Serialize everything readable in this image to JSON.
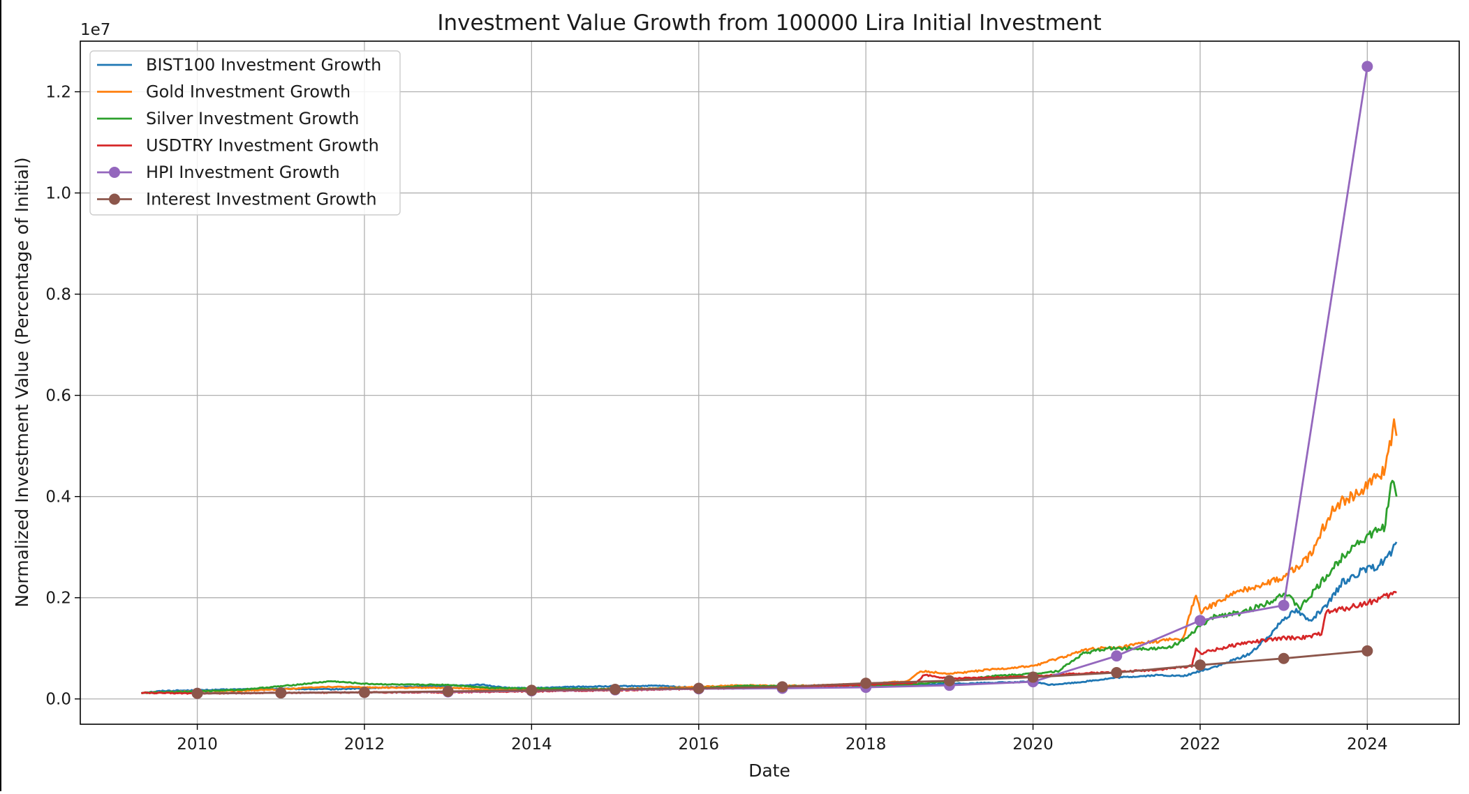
{
  "chart_data": {
    "type": "line",
    "title": "Investment Value Growth from 100000 Lira Initial Investment",
    "xlabel": "Date",
    "ylabel": "Normalized Investment Value (Percentage of Initial)",
    "y_scale_label": "1e7",
    "x_tick_labels": [
      "2010",
      "2012",
      "2014",
      "2016",
      "2018",
      "2020",
      "2022",
      "2024"
    ],
    "x_ticks": [
      2010,
      2012,
      2014,
      2016,
      2018,
      2020,
      2022,
      2024
    ],
    "y_tick_labels": [
      "0.0",
      "0.2",
      "0.4",
      "0.6",
      "0.8",
      "1.0",
      "1.2"
    ],
    "y_ticks": [
      0,
      0.2,
      0.4,
      0.6,
      0.8,
      1.0,
      1.2
    ],
    "xlim": [
      2008.6,
      2025.1
    ],
    "ylim": [
      -0.05,
      1.3
    ],
    "grid": true,
    "legend_position": "top-left",
    "series": [
      {
        "name": "BIST100 Investment Growth",
        "color": "#1f77b4",
        "marker": false,
        "x": [
          2009.33,
          2009.6,
          2010.0,
          2010.5,
          2011.0,
          2011.6,
          2012.0,
          2012.5,
          2013.0,
          2013.4,
          2013.7,
          2014.0,
          2014.5,
          2015.0,
          2015.5,
          2016.0,
          2016.5,
          2017.0,
          2017.5,
          2018.0,
          2018.5,
          2019.0,
          2019.5,
          2020.0,
          2020.2,
          2020.5,
          2020.8,
          2021.0,
          2021.5,
          2021.8,
          2022.0,
          2022.3,
          2022.6,
          2022.8,
          2023.0,
          2023.15,
          2023.3,
          2023.5,
          2023.7,
          2023.9,
          2024.1,
          2024.3,
          2024.35
        ],
        "y": [
          0.012,
          0.016,
          0.017,
          0.019,
          0.02,
          0.019,
          0.021,
          0.024,
          0.026,
          0.028,
          0.022,
          0.021,
          0.024,
          0.025,
          0.026,
          0.022,
          0.025,
          0.024,
          0.027,
          0.027,
          0.028,
          0.03,
          0.032,
          0.034,
          0.028,
          0.032,
          0.038,
          0.042,
          0.047,
          0.045,
          0.055,
          0.07,
          0.09,
          0.12,
          0.16,
          0.175,
          0.155,
          0.18,
          0.23,
          0.25,
          0.26,
          0.29,
          0.31
        ]
      },
      {
        "name": "Gold Investment Growth",
        "color": "#ff7f0e",
        "marker": false,
        "x": [
          2009.33,
          2010.0,
          2010.5,
          2011.0,
          2011.5,
          2012.0,
          2012.5,
          2013.0,
          2013.5,
          2014.0,
          2014.5,
          2015.0,
          2015.5,
          2016.0,
          2016.5,
          2017.0,
          2017.5,
          2018.0,
          2018.5,
          2018.65,
          2019.0,
          2019.5,
          2020.0,
          2020.3,
          2020.7,
          2021.0,
          2021.3,
          2021.8,
          2021.95,
          2022.0,
          2022.3,
          2022.6,
          2023.0,
          2023.3,
          2023.6,
          2024.0,
          2024.2,
          2024.32,
          2024.35
        ],
        "y": [
          0.012,
          0.015,
          0.016,
          0.019,
          0.024,
          0.023,
          0.022,
          0.022,
          0.019,
          0.019,
          0.019,
          0.02,
          0.021,
          0.024,
          0.027,
          0.026,
          0.027,
          0.03,
          0.035,
          0.055,
          0.05,
          0.058,
          0.065,
          0.08,
          0.1,
          0.1,
          0.11,
          0.12,
          0.21,
          0.17,
          0.2,
          0.22,
          0.24,
          0.28,
          0.38,
          0.42,
          0.45,
          0.54,
          0.52
        ]
      },
      {
        "name": "Silver Investment Growth",
        "color": "#2ca02c",
        "marker": false,
        "x": [
          2009.33,
          2010.0,
          2010.5,
          2011.0,
          2011.3,
          2011.6,
          2012.0,
          2012.5,
          2013.0,
          2013.5,
          2014.0,
          2014.5,
          2015.0,
          2015.5,
          2016.0,
          2016.5,
          2017.0,
          2017.5,
          2018.0,
          2018.5,
          2019.0,
          2019.5,
          2020.0,
          2020.3,
          2020.6,
          2020.9,
          2021.2,
          2021.6,
          2021.85,
          2022.0,
          2022.2,
          2022.5,
          2022.8,
          2023.0,
          2023.2,
          2023.5,
          2023.8,
          2024.0,
          2024.2,
          2024.3,
          2024.35
        ],
        "y": [
          0.012,
          0.015,
          0.018,
          0.025,
          0.03,
          0.035,
          0.03,
          0.028,
          0.028,
          0.022,
          0.021,
          0.02,
          0.019,
          0.02,
          0.021,
          0.026,
          0.025,
          0.026,
          0.026,
          0.028,
          0.035,
          0.045,
          0.05,
          0.055,
          0.09,
          0.1,
          0.1,
          0.1,
          0.12,
          0.145,
          0.165,
          0.17,
          0.19,
          0.21,
          0.18,
          0.24,
          0.3,
          0.32,
          0.34,
          0.43,
          0.4
        ]
      },
      {
        "name": "USDTRY Investment Growth",
        "color": "#d62728",
        "marker": false,
        "x": [
          2009.33,
          2010.0,
          2011.0,
          2012.0,
          2013.0,
          2014.0,
          2015.0,
          2016.0,
          2017.0,
          2018.0,
          2018.6,
          2018.7,
          2019.0,
          2020.0,
          2020.5,
          2021.0,
          2021.5,
          2021.9,
          2021.95,
          2022.0,
          2022.5,
          2023.0,
          2023.3,
          2023.45,
          2023.5,
          2024.0,
          2024.35
        ],
        "y": [
          0.012,
          0.011,
          0.012,
          0.013,
          0.013,
          0.015,
          0.017,
          0.02,
          0.023,
          0.028,
          0.032,
          0.048,
          0.04,
          0.045,
          0.05,
          0.053,
          0.058,
          0.065,
          0.1,
          0.09,
          0.11,
          0.12,
          0.122,
          0.13,
          0.17,
          0.19,
          0.21
        ]
      },
      {
        "name": "HPI Investment Growth",
        "color": "#9467bd",
        "marker": true,
        "x": [
          2010,
          2011,
          2012,
          2013,
          2014,
          2015,
          2016,
          2017,
          2018,
          2019,
          2020,
          2021,
          2022,
          2023,
          2024
        ],
        "y": [
          0.011,
          0.012,
          0.013,
          0.014,
          0.016,
          0.018,
          0.02,
          0.021,
          0.023,
          0.027,
          0.034,
          0.085,
          0.155,
          0.185,
          1.25
        ]
      },
      {
        "name": "Interest Investment Growth",
        "color": "#8c564b",
        "marker": true,
        "x": [
          2010,
          2011,
          2012,
          2013,
          2014,
          2015,
          2016,
          2017,
          2018,
          2019,
          2020,
          2021,
          2022,
          2023,
          2024
        ],
        "y": [
          0.011,
          0.012,
          0.013,
          0.015,
          0.017,
          0.019,
          0.021,
          0.024,
          0.031,
          0.036,
          0.043,
          0.052,
          0.067,
          0.08,
          0.095
        ]
      }
    ]
  }
}
